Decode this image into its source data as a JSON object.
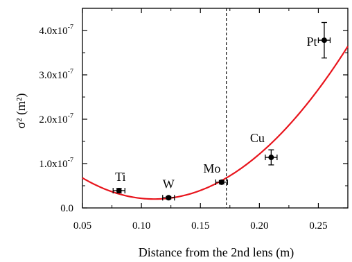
{
  "chart_data": {
    "type": "scatter",
    "xlabel": "Distance from the 2nd lens (m)",
    "ylabel": "σ² (m²)",
    "xlim": [
      0.05,
      0.275
    ],
    "ylim": [
      0,
      4.5e-07
    ],
    "x_ticks": [
      {
        "value": 0.05,
        "label": "0.05"
      },
      {
        "value": 0.1,
        "label": "0.10"
      },
      {
        "value": 0.15,
        "label": "0.15"
      },
      {
        "value": 0.2,
        "label": "0.20"
      },
      {
        "value": 0.25,
        "label": "0.25"
      }
    ],
    "y_ticks": [
      {
        "value": 0,
        "mant": "0.0",
        "exp": ""
      },
      {
        "value": 1e-07,
        "mant": "1.0x10",
        "exp": "-7"
      },
      {
        "value": 2e-07,
        "mant": "2.0x10",
        "exp": "-7"
      },
      {
        "value": 3e-07,
        "mant": "3.0x10",
        "exp": "-7"
      },
      {
        "value": 4e-07,
        "mant": "4.0x10",
        "exp": "-7"
      }
    ],
    "points": [
      {
        "label": "Ti",
        "x": 0.081,
        "y": 3.9e-08,
        "xerr": 0.005,
        "yerr": 5e-09
      },
      {
        "label": "W",
        "x": 0.123,
        "y": 2.3e-08,
        "xerr": 0.005,
        "yerr": 3e-09
      },
      {
        "label": "Mo",
        "x": 0.168,
        "y": 5.8e-08,
        "xerr": 0.005,
        "yerr": 4e-09
      },
      {
        "label": "Cu",
        "x": 0.21,
        "y": 1.14e-07,
        "xerr": 0.005,
        "yerr": 1.7e-08
      },
      {
        "label": "Pt",
        "x": 0.255,
        "y": 3.78e-07,
        "xerr": 0.005,
        "yerr": 4e-08
      }
    ],
    "fit_curve": {
      "type": "parabola",
      "color": "#e8141c",
      "vertex_x": 0.111,
      "vertex_y": 2e-08,
      "coef_a": 1.28e-05
    },
    "vline": {
      "x": 0.172,
      "style": "dashed"
    },
    "grid": false,
    "colors": {
      "axis": "#000000",
      "marker": "#000000",
      "fit": "#e8141c"
    }
  }
}
